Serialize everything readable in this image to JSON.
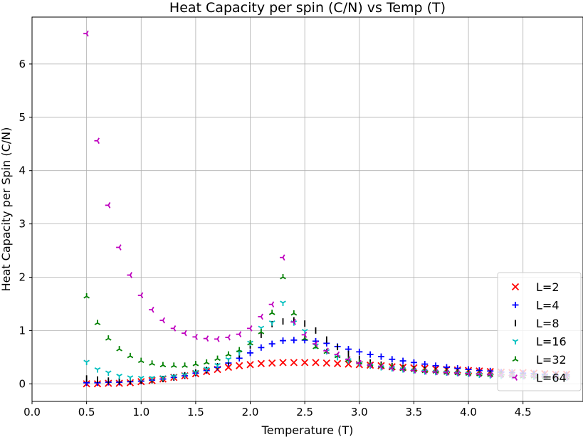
{
  "chart_data": {
    "type": "scatter",
    "title": "Heat Capacity per spin (C/N) vs Temp (T)",
    "xlabel": "Temperature (T)",
    "ylabel": "Heat Capacity per Spin (C/N)",
    "xlim": [
      0.0,
      5.05
    ],
    "ylim": [
      -0.33,
      6.88
    ],
    "xticks": [
      "0.0",
      "0.5",
      "1.0",
      "1.5",
      "2.0",
      "2.5",
      "3.0",
      "3.5",
      "4.0",
      "4.5"
    ],
    "xtick_values": [
      0.0,
      0.5,
      1.0,
      1.5,
      2.0,
      2.5,
      3.0,
      3.5,
      4.0,
      4.5
    ],
    "yticks": [
      "0",
      "1",
      "2",
      "3",
      "4",
      "5",
      "6"
    ],
    "ytick_values": [
      0,
      1,
      2,
      3,
      4,
      5,
      6
    ],
    "grid": true,
    "legend_position": "bottom-right",
    "x": [
      0.5,
      0.6,
      0.7,
      0.8,
      0.9,
      1.0,
      1.1,
      1.2,
      1.3,
      1.4,
      1.5,
      1.6,
      1.7,
      1.8,
      1.9,
      2.0,
      2.1,
      2.2,
      2.3,
      2.4,
      2.5,
      2.6,
      2.7,
      2.8,
      2.9,
      3.0,
      3.1,
      3.2,
      3.3,
      3.4,
      3.5,
      3.6,
      3.7,
      3.8,
      3.9,
      4.0,
      4.1,
      4.2,
      4.3,
      4.4,
      4.5,
      4.6,
      4.7,
      4.8,
      4.9
    ],
    "series": [
      {
        "name": "L=2",
        "color": "#ff0000",
        "marker": "x",
        "values": [
          0.0,
          0.0,
          0.01,
          0.01,
          0.02,
          0.04,
          0.06,
          0.09,
          0.12,
          0.15,
          0.19,
          0.23,
          0.27,
          0.31,
          0.34,
          0.36,
          0.38,
          0.39,
          0.4,
          0.4,
          0.4,
          0.4,
          0.39,
          0.38,
          0.37,
          0.36,
          0.35,
          0.34,
          0.32,
          0.31,
          0.3,
          0.29,
          0.28,
          0.27,
          0.26,
          0.25,
          0.24,
          0.23,
          0.22,
          0.21,
          0.21,
          0.2,
          0.19,
          0.18,
          0.18
        ]
      },
      {
        "name": "L=4",
        "color": "#0000ff",
        "marker": "+",
        "values": [
          0.02,
          0.02,
          0.03,
          0.03,
          0.04,
          0.05,
          0.07,
          0.09,
          0.12,
          0.15,
          0.2,
          0.25,
          0.31,
          0.39,
          0.48,
          0.58,
          0.68,
          0.75,
          0.81,
          0.82,
          0.82,
          0.8,
          0.76,
          0.7,
          0.65,
          0.6,
          0.55,
          0.51,
          0.46,
          0.43,
          0.4,
          0.37,
          0.34,
          0.31,
          0.29,
          0.27,
          0.25,
          0.24,
          0.22,
          0.21,
          0.2,
          0.19,
          0.18,
          0.17,
          0.17
        ]
      },
      {
        "name": "L=8",
        "color": "#000000",
        "marker": "|",
        "values": [
          0.1,
          0.08,
          0.06,
          0.05,
          0.05,
          0.06,
          0.07,
          0.09,
          0.12,
          0.16,
          0.21,
          0.26,
          0.33,
          0.42,
          0.55,
          0.72,
          0.92,
          1.12,
          1.17,
          1.19,
          1.13,
          1.0,
          0.83,
          0.69,
          0.56,
          0.47,
          0.4,
          0.36,
          0.33,
          0.3,
          0.28,
          0.26,
          0.24,
          0.23,
          0.21,
          0.2,
          0.19,
          0.18,
          0.17,
          0.16,
          0.15,
          0.15,
          0.14,
          0.14,
          0.13
        ]
      },
      {
        "name": "L=16",
        "color": "#00bfbf",
        "marker": "tri_down",
        "values": [
          0.41,
          0.27,
          0.21,
          0.15,
          0.12,
          0.11,
          0.11,
          0.12,
          0.14,
          0.17,
          0.22,
          0.28,
          0.35,
          0.46,
          0.59,
          0.77,
          1.05,
          1.15,
          1.52,
          1.15,
          0.99,
          0.72,
          0.61,
          0.5,
          0.44,
          0.38,
          0.34,
          0.31,
          0.29,
          0.27,
          0.25,
          0.23,
          0.22,
          0.21,
          0.2,
          0.19,
          0.17,
          0.16,
          0.15,
          0.14,
          0.14,
          0.13,
          0.13,
          0.12,
          0.12
        ]
      },
      {
        "name": "L=32",
        "color": "#008000",
        "marker": "tri_up",
        "values": [
          1.64,
          1.14,
          0.85,
          0.65,
          0.52,
          0.43,
          0.38,
          0.35,
          0.34,
          0.34,
          0.37,
          0.4,
          0.47,
          0.55,
          0.63,
          0.76,
          0.97,
          1.33,
          2.0,
          1.32,
          0.85,
          0.69,
          0.6,
          0.52,
          0.45,
          0.4,
          0.36,
          0.33,
          0.3,
          0.28,
          0.26,
          0.24,
          0.23,
          0.21,
          0.2,
          0.19,
          0.18,
          0.17,
          0.16,
          0.15,
          0.14,
          0.14,
          0.13,
          0.13,
          0.12
        ]
      },
      {
        "name": "L=64",
        "color": "#bf00bf",
        "marker": "tri_left",
        "values": [
          6.57,
          4.56,
          3.35,
          2.56,
          2.04,
          1.66,
          1.39,
          1.19,
          1.04,
          0.95,
          0.88,
          0.85,
          0.84,
          0.87,
          0.93,
          1.04,
          1.26,
          1.49,
          2.37,
          1.16,
          0.92,
          0.75,
          0.62,
          0.55,
          0.46,
          0.39,
          0.35,
          0.32,
          0.29,
          0.27,
          0.25,
          0.23,
          0.22,
          0.21,
          0.2,
          0.19,
          0.18,
          0.17,
          0.16,
          0.15,
          0.14,
          0.14,
          0.13,
          0.13,
          0.12
        ]
      }
    ]
  }
}
